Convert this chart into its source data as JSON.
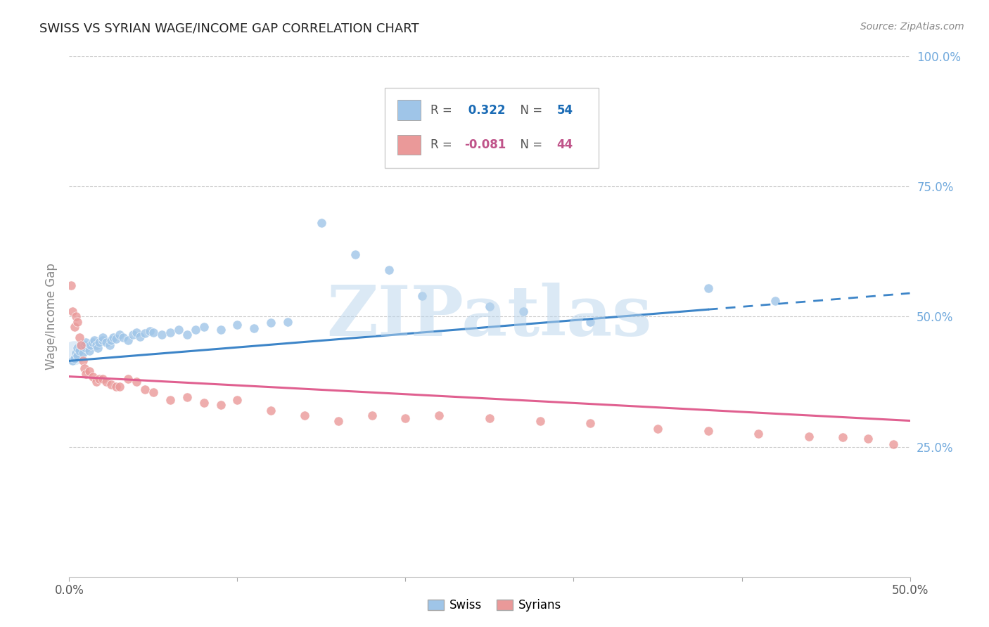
{
  "title": "SWISS VS SYRIAN WAGE/INCOME GAP CORRELATION CHART",
  "source": "Source: ZipAtlas.com",
  "ylabel": "Wage/Income Gap",
  "xlim": [
    0.0,
    0.5
  ],
  "ylim": [
    0.0,
    1.0
  ],
  "swiss_R": 0.322,
  "swiss_N": 54,
  "syrian_R": -0.081,
  "syrian_N": 44,
  "swiss_color": "#9fc5e8",
  "syrian_color": "#ea9999",
  "swiss_line_color": "#3d85c8",
  "syrian_line_color": "#e06090",
  "watermark": "ZIPatlas",
  "watermark_color": "#b8d4ec",
  "background_color": "#ffffff",
  "grid_color": "#cccccc",
  "right_axis_color": "#6fa8dc",
  "swiss_x": [
    0.002,
    0.003,
    0.004,
    0.005,
    0.005,
    0.006,
    0.007,
    0.008,
    0.009,
    0.01,
    0.01,
    0.012,
    0.013,
    0.014,
    0.015,
    0.016,
    0.017,
    0.018,
    0.02,
    0.02,
    0.022,
    0.024,
    0.025,
    0.026,
    0.028,
    0.03,
    0.032,
    0.035,
    0.038,
    0.04,
    0.042,
    0.045,
    0.048,
    0.05,
    0.055,
    0.06,
    0.065,
    0.07,
    0.075,
    0.08,
    0.09,
    0.1,
    0.11,
    0.12,
    0.13,
    0.15,
    0.17,
    0.19,
    0.21,
    0.25,
    0.27,
    0.31,
    0.38,
    0.42
  ],
  "swiss_y": [
    0.415,
    0.42,
    0.43,
    0.425,
    0.44,
    0.435,
    0.445,
    0.43,
    0.445,
    0.44,
    0.45,
    0.435,
    0.445,
    0.45,
    0.455,
    0.445,
    0.44,
    0.45,
    0.455,
    0.46,
    0.45,
    0.445,
    0.455,
    0.46,
    0.458,
    0.465,
    0.46,
    0.455,
    0.465,
    0.47,
    0.462,
    0.468,
    0.472,
    0.47,
    0.465,
    0.47,
    0.475,
    0.465,
    0.475,
    0.48,
    0.475,
    0.485,
    0.478,
    0.488,
    0.49,
    0.68,
    0.62,
    0.59,
    0.54,
    0.52,
    0.51,
    0.49,
    0.555,
    0.53
  ],
  "syrian_x": [
    0.001,
    0.002,
    0.003,
    0.004,
    0.005,
    0.006,
    0.007,
    0.008,
    0.009,
    0.01,
    0.012,
    0.014,
    0.016,
    0.018,
    0.02,
    0.022,
    0.025,
    0.028,
    0.03,
    0.035,
    0.04,
    0.045,
    0.05,
    0.06,
    0.07,
    0.08,
    0.09,
    0.1,
    0.12,
    0.14,
    0.16,
    0.18,
    0.2,
    0.22,
    0.25,
    0.28,
    0.31,
    0.35,
    0.38,
    0.41,
    0.44,
    0.46,
    0.475,
    0.49
  ],
  "syrian_y": [
    0.56,
    0.51,
    0.48,
    0.5,
    0.49,
    0.46,
    0.445,
    0.415,
    0.4,
    0.39,
    0.395,
    0.385,
    0.375,
    0.38,
    0.38,
    0.375,
    0.37,
    0.365,
    0.365,
    0.38,
    0.375,
    0.36,
    0.355,
    0.34,
    0.345,
    0.335,
    0.33,
    0.34,
    0.32,
    0.31,
    0.3,
    0.31,
    0.305,
    0.31,
    0.305,
    0.3,
    0.295,
    0.285,
    0.28,
    0.275,
    0.27,
    0.268,
    0.265,
    0.255
  ]
}
